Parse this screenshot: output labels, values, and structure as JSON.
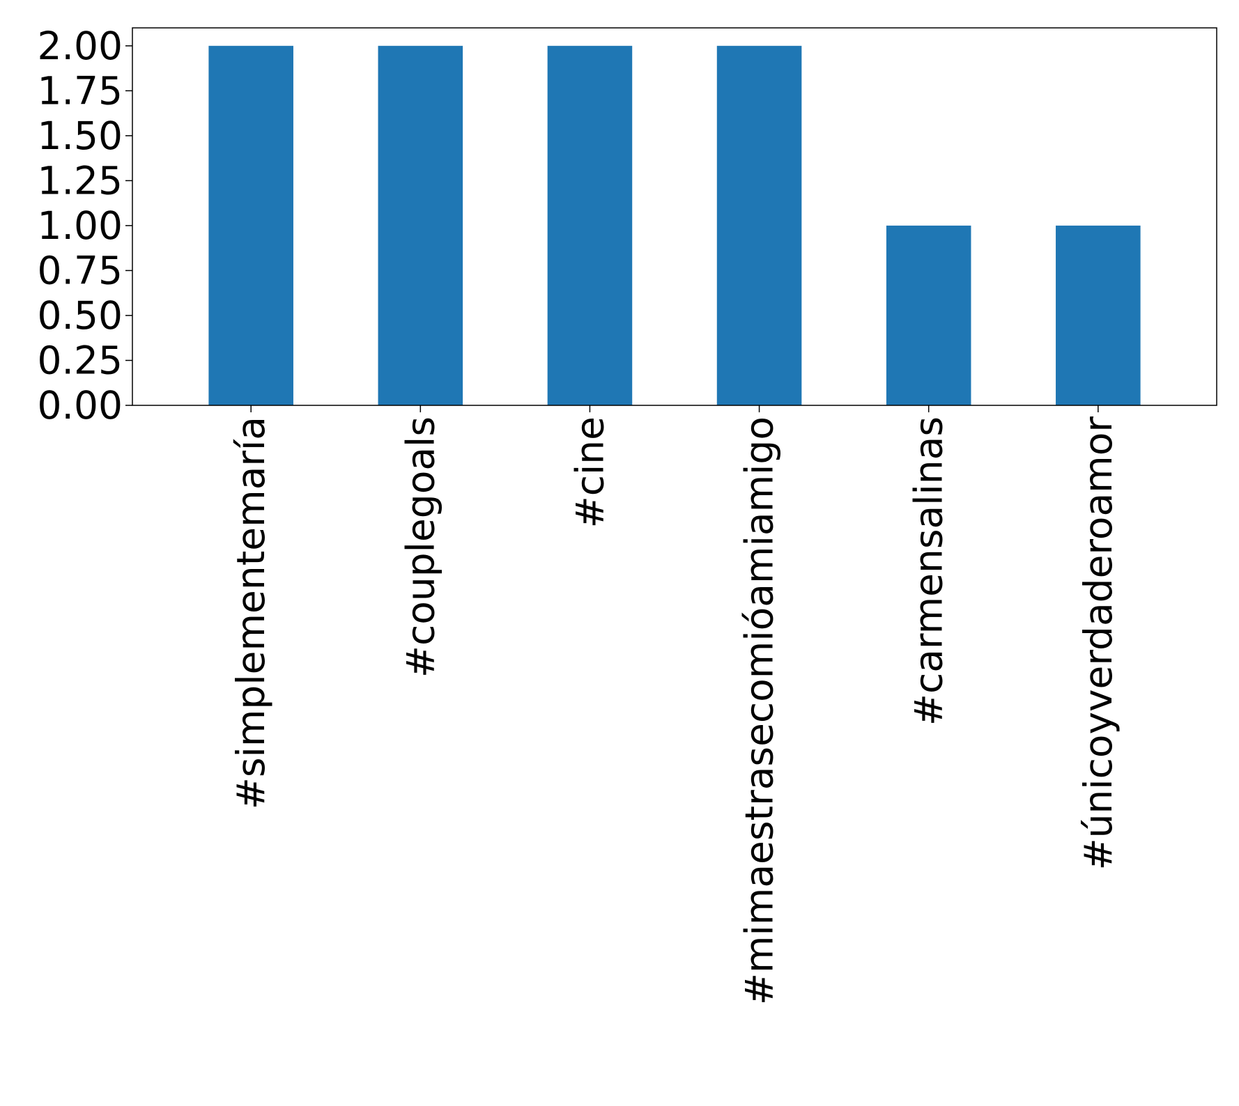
{
  "chart_data": {
    "type": "bar",
    "title": "",
    "xlabel": "",
    "ylabel": "",
    "categories": [
      "#simplementemaría",
      "#couplegoals",
      "#cine",
      "#mimaestrasecomióamiamigo",
      "#carmensalinas",
      "#únicoyverdaderoamor"
    ],
    "values": [
      2,
      2,
      2,
      2,
      1,
      1
    ],
    "ylim": [
      0,
      2.1
    ],
    "yticks": [
      0.0,
      0.25,
      0.5,
      0.75,
      1.0,
      1.25,
      1.5,
      1.75,
      2.0
    ],
    "ytick_labels": [
      "0.00",
      "0.25",
      "0.50",
      "0.75",
      "1.00",
      "1.25",
      "1.50",
      "1.75",
      "2.00"
    ],
    "grid": false,
    "legend": "none",
    "bar_color": "#1f77b4",
    "axes_color": "#000000"
  }
}
